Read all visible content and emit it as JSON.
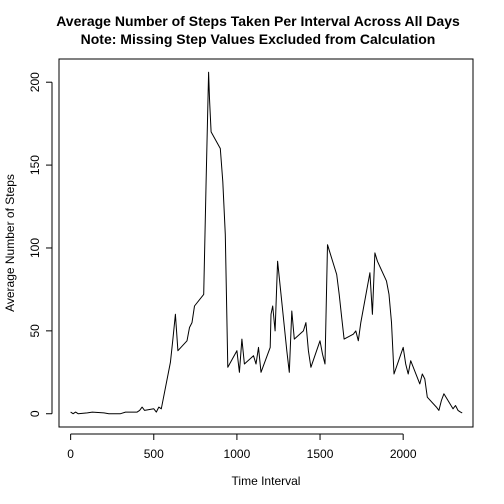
{
  "chart_data": {
    "type": "line",
    "title": "Average Number of Steps Taken Per Interval Across All Days",
    "subtitle": "Note: Missing Step Values Excluded from Calculation",
    "xlabel": "Time Interval",
    "ylabel": "Average Number of Steps",
    "xlim": [
      -70,
      2420
    ],
    "ylim": [
      -8,
      214
    ],
    "xticks": [
      0,
      500,
      1000,
      1500,
      2000
    ],
    "yticks": [
      0,
      50,
      100,
      150,
      200
    ],
    "grid": false,
    "series": [
      {
        "color": "#000000",
        "x": [
          0,
          15,
          30,
          45,
          100,
          130,
          200,
          230,
          300,
          330,
          400,
          415,
          430,
          445,
          500,
          515,
          530,
          545,
          600,
          615,
          630,
          645,
          700,
          715,
          730,
          745,
          800,
          815,
          830,
          835,
          845,
          900,
          915,
          930,
          945,
          1000,
          1015,
          1030,
          1045,
          1100,
          1115,
          1130,
          1145,
          1200,
          1205,
          1215,
          1230,
          1245,
          1300,
          1315,
          1330,
          1345,
          1400,
          1415,
          1430,
          1445,
          1500,
          1515,
          1530,
          1545,
          1600,
          1615,
          1630,
          1645,
          1700,
          1715,
          1730,
          1745,
          1800,
          1815,
          1830,
          1845,
          1900,
          1915,
          1930,
          1945,
          2000,
          2015,
          2030,
          2045,
          2100,
          2115,
          2130,
          2145,
          2200,
          2215,
          2230,
          2245,
          2300,
          2315,
          2330,
          2345,
          2355
        ],
        "y": [
          1,
          0,
          1,
          0,
          0.5,
          1,
          0.5,
          0,
          0,
          1,
          1,
          2,
          4,
          2,
          3,
          1,
          4,
          3,
          31,
          45,
          60,
          38,
          44,
          52,
          55,
          65,
          72,
          140,
          206,
          190,
          170,
          160,
          140,
          108,
          28,
          38,
          25,
          45,
          30,
          35,
          30,
          40,
          25,
          40,
          60,
          65,
          50,
          92,
          38,
          25,
          62,
          45,
          50,
          55,
          38,
          28,
          44,
          36,
          30,
          102,
          84,
          72,
          58,
          45,
          48,
          50,
          44,
          55,
          85,
          60,
          97,
          92,
          80,
          72,
          55,
          24,
          40,
          30,
          24,
          32,
          18,
          24,
          21,
          10,
          4,
          2,
          8,
          12,
          3,
          5,
          2,
          1,
          0.5
        ]
      }
    ]
  }
}
